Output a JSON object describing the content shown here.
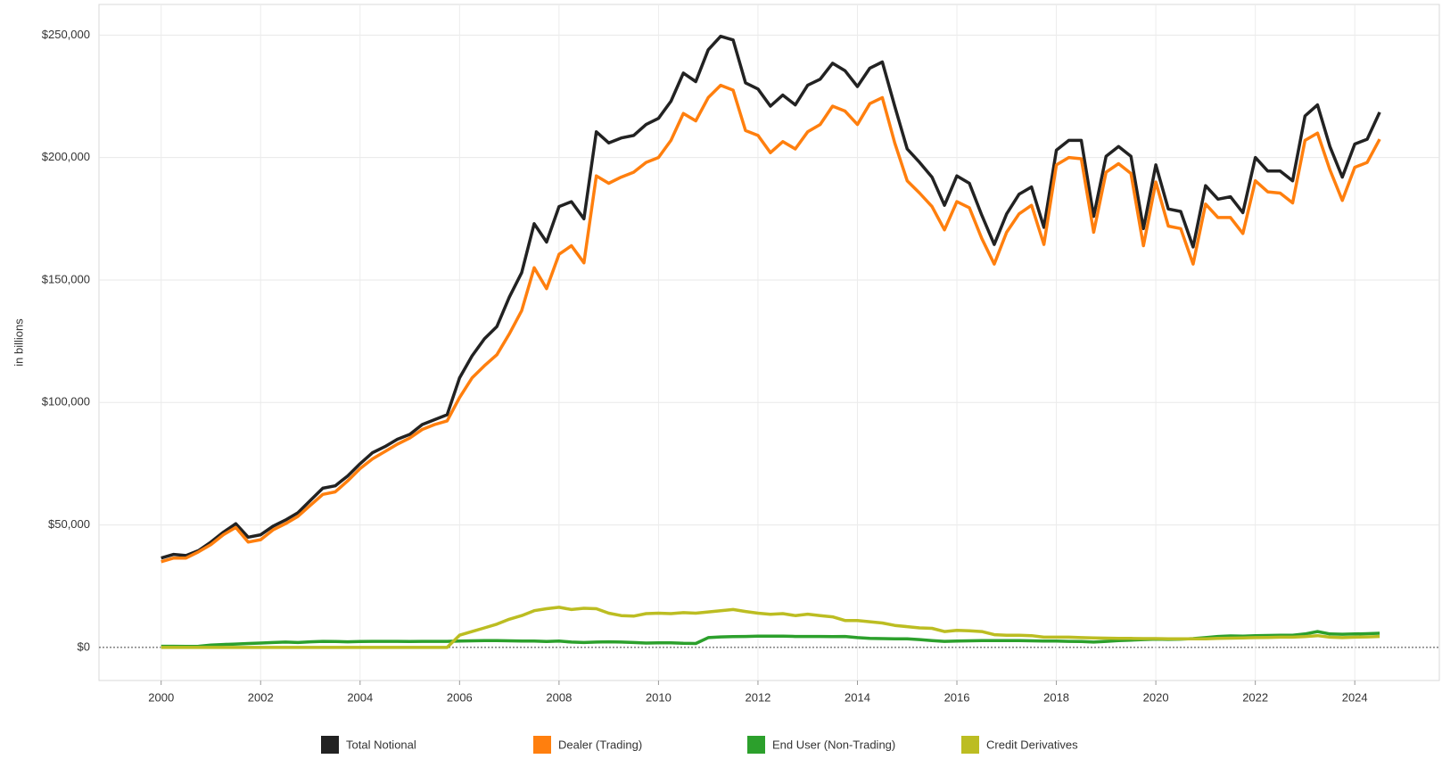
{
  "chart_data": {
    "type": "line",
    "y_label": "in billions",
    "x": [
      2000,
      2000.25,
      2000.5,
      2000.75,
      2001,
      2001.25,
      2001.5,
      2001.75,
      2002,
      2002.25,
      2002.5,
      2002.75,
      2003,
      2003.25,
      2003.5,
      2003.75,
      2004,
      2004.25,
      2004.5,
      2004.75,
      2005,
      2005.25,
      2005.5,
      2005.75,
      2006,
      2006.25,
      2006.5,
      2006.75,
      2007,
      2007.25,
      2007.5,
      2007.75,
      2008,
      2008.25,
      2008.5,
      2008.75,
      2009,
      2009.25,
      2009.5,
      2009.75,
      2010,
      2010.25,
      2010.5,
      2010.75,
      2011,
      2011.25,
      2011.5,
      2011.75,
      2012,
      2012.25,
      2012.5,
      2012.75,
      2013,
      2013.25,
      2013.5,
      2013.75,
      2014,
      2014.25,
      2014.5,
      2014.75,
      2015,
      2015.25,
      2015.5,
      2015.75,
      2016,
      2016.25,
      2016.5,
      2016.75,
      2017,
      2017.25,
      2017.5,
      2017.75,
      2018,
      2018.25,
      2018.5,
      2018.75,
      2019,
      2019.25,
      2019.5,
      2019.75,
      2020,
      2020.25,
      2020.5,
      2020.75,
      2021,
      2021.25,
      2021.5,
      2021.75,
      2022,
      2022.25,
      2022.5,
      2022.75,
      2023,
      2023.25,
      2023.5,
      2023.75,
      2024,
      2024.25,
      2024.5
    ],
    "series": [
      {
        "name": "Total Notional",
        "color": "#222222",
        "values": [
          36500,
          38000,
          37500,
          39500,
          43000,
          47000,
          50500,
          45000,
          46000,
          49500,
          52000,
          55000,
          60000,
          65000,
          66000,
          70000,
          75000,
          79500,
          82000,
          85000,
          87000,
          91000,
          93000,
          95000,
          110000,
          119000,
          126000,
          131000,
          143000,
          153000,
          173000,
          165500,
          180000,
          182000,
          175000,
          210500,
          206000,
          208000,
          209000,
          213500,
          216000,
          223000,
          234500,
          231000,
          244000,
          249500,
          248000,
          230500,
          228000,
          221000,
          225500,
          221500,
          229500,
          232000,
          238500,
          235500,
          229000,
          236500,
          239000,
          221000,
          203500,
          198000,
          192000,
          180500,
          192500,
          189500,
          176500,
          164500,
          177000,
          185000,
          188000,
          171500,
          203000,
          207000,
          207000,
          176000,
          200500,
          204500,
          200500,
          171000,
          197000,
          179000,
          178000,
          163500,
          188500,
          183000,
          184000,
          177500,
          200000,
          194500,
          194500,
          190500,
          217000,
          221500,
          204500,
          192000,
          205500,
          207500,
          218500
        ]
      },
      {
        "name": "Dealer (Trading)",
        "color": "#ff7f0e",
        "values": [
          35000,
          36500,
          36500,
          39000,
          42000,
          46000,
          49000,
          43000,
          44000,
          48000,
          50500,
          53500,
          58000,
          62500,
          63500,
          68000,
          73000,
          77000,
          80000,
          83000,
          85500,
          89000,
          91000,
          92500,
          102000,
          110000,
          115000,
          119500,
          128000,
          137500,
          155000,
          146500,
          160500,
          164000,
          157000,
          192500,
          189500,
          192000,
          194000,
          198000,
          200000,
          207000,
          218000,
          215000,
          224500,
          229500,
          227500,
          211000,
          209000,
          202000,
          206500,
          203500,
          210500,
          213500,
          221000,
          219000,
          213500,
          222000,
          224500,
          206000,
          190500,
          185500,
          180000,
          170500,
          182000,
          179500,
          167000,
          156500,
          169500,
          177000,
          180500,
          164500,
          197000,
          200000,
          199500,
          169500,
          194000,
          197500,
          193500,
          164000,
          190000,
          172000,
          171000,
          156500,
          181000,
          175500,
          175500,
          169000,
          190500,
          186000,
          185500,
          181500,
          207000,
          210000,
          195000,
          182500,
          196000,
          198000,
          207500
        ]
      },
      {
        "name": "End User (Non-Trading)",
        "color": "#2ca02c",
        "values": [
          500,
          500,
          400,
          500,
          1000,
          1200,
          1400,
          1600,
          1800,
          2000,
          2200,
          2000,
          2300,
          2500,
          2400,
          2300,
          2400,
          2500,
          2500,
          2500,
          2400,
          2500,
          2500,
          2500,
          2600,
          2700,
          2800,
          2800,
          2700,
          2600,
          2600,
          2400,
          2600,
          2200,
          2000,
          2200,
          2300,
          2200,
          2000,
          1800,
          1900,
          1900,
          1700,
          1600,
          4000,
          4300,
          4400,
          4500,
          4600,
          4600,
          4600,
          4500,
          4500,
          4500,
          4400,
          4500,
          4000,
          3700,
          3600,
          3500,
          3500,
          3200,
          2800,
          2500,
          2600,
          2700,
          2800,
          2800,
          2800,
          2800,
          2700,
          2600,
          2600,
          2500,
          2400,
          2200,
          2500,
          2800,
          3000,
          3200,
          3400,
          3300,
          3400,
          3600,
          4000,
          4500,
          4700,
          4600,
          4800,
          4900,
          5000,
          5000,
          5500,
          6500,
          5500,
          5400,
          5500,
          5600,
          5800
        ]
      },
      {
        "name": "Credit Derivatives",
        "color": "#bcbd22",
        "values": [
          0,
          0,
          0,
          0,
          0,
          0,
          0,
          0,
          0,
          0,
          0,
          0,
          0,
          0,
          0,
          0,
          0,
          0,
          0,
          0,
          0,
          0,
          0,
          0,
          5000,
          6500,
          8000,
          9500,
          11500,
          13000,
          15000,
          15800,
          16400,
          15500,
          16000,
          15800,
          14000,
          13000,
          12800,
          13800,
          14000,
          13800,
          14200,
          14000,
          14500,
          15000,
          15500,
          14700,
          14000,
          13500,
          13800,
          13000,
          13600,
          13000,
          12500,
          11000,
          11000,
          10500,
          10000,
          9000,
          8500,
          8000,
          7800,
          6500,
          7000,
          6800,
          6500,
          5200,
          5000,
          5000,
          4800,
          4200,
          4200,
          4200,
          4000,
          3900,
          3800,
          3700,
          3700,
          3600,
          3600,
          3500,
          3500,
          3500,
          3500,
          3700,
          3800,
          3900,
          4000,
          4100,
          4200,
          4200,
          4400,
          4800,
          4200,
          4000,
          4200,
          4300,
          4500
        ]
      }
    ],
    "xlim": [
      1998.75,
      2025.7
    ],
    "xticks": [
      2000,
      2002,
      2004,
      2006,
      2008,
      2010,
      2012,
      2014,
      2016,
      2018,
      2020,
      2022,
      2024
    ],
    "ylim": [
      -13500,
      262500
    ],
    "yticks": [
      {
        "value": 0,
        "label": "$0"
      },
      {
        "value": 50000,
        "label": "$50,000"
      },
      {
        "value": 100000,
        "label": "$100,000"
      },
      {
        "value": 150000,
        "label": "$150,000"
      },
      {
        "value": 200000,
        "label": "$200,000"
      },
      {
        "value": 250000,
        "label": "$250,000"
      }
    ],
    "grid": true
  }
}
